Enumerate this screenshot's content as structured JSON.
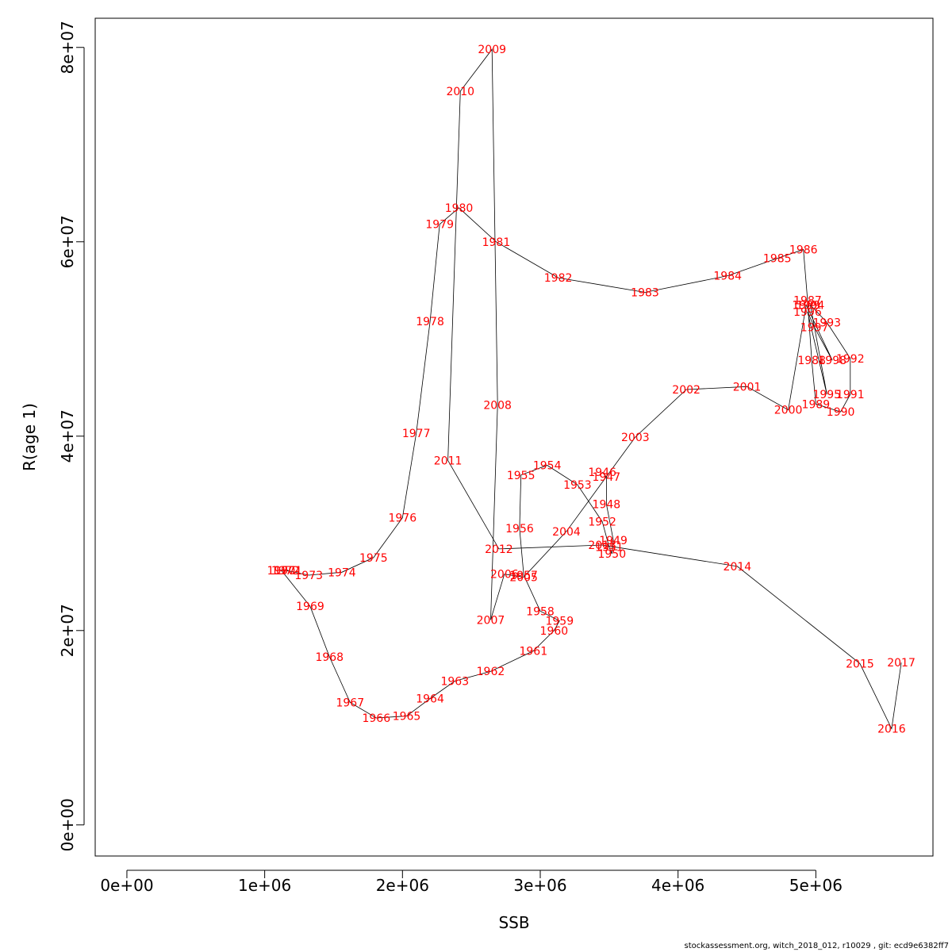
{
  "footer_text": "stockassessment.org, witch_2018_012, r10029 , git: ecd9e6382ff7",
  "chart_data": {
    "type": "line",
    "title": "",
    "xlabel": "SSB",
    "ylabel": "R(age 1)",
    "xlim": [
      -230000,
      5850000
    ],
    "ylim": [
      -3200000,
      83000000
    ],
    "x_ticks": [
      0,
      1000000,
      2000000,
      3000000,
      4000000,
      5000000
    ],
    "x_tick_labels": [
      "0e+00",
      "1e+06",
      "2e+06",
      "3e+06",
      "4e+06",
      "5e+06"
    ],
    "y_ticks": [
      0,
      20000000,
      40000000,
      60000000,
      80000000
    ],
    "y_tick_labels": [
      "0e+00",
      "2e+07",
      "4e+07",
      "6e+07",
      "8e+07"
    ],
    "line_color": "#000000",
    "label_color": "#ff0000",
    "grid": false,
    "points": [
      {
        "year": "1946",
        "ssb": 3450000,
        "rec": 36300000
      },
      {
        "year": "1947",
        "ssb": 3480000,
        "rec": 35800000
      },
      {
        "year": "1948",
        "ssb": 3480000,
        "rec": 33000000
      },
      {
        "year": "1949",
        "ssb": 3530000,
        "rec": 29300000
      },
      {
        "year": "1950",
        "ssb": 3520000,
        "rec": 27900000
      },
      {
        "year": "1951",
        "ssb": 3500000,
        "rec": 28600000
      },
      {
        "year": "1952",
        "ssb": 3450000,
        "rec": 31200000
      },
      {
        "year": "1953",
        "ssb": 3270000,
        "rec": 35000000
      },
      {
        "year": "1954",
        "ssb": 3050000,
        "rec": 37000000
      },
      {
        "year": "1955",
        "ssb": 2860000,
        "rec": 36000000
      },
      {
        "year": "1956",
        "ssb": 2850000,
        "rec": 30500000
      },
      {
        "year": "1957",
        "ssb": 2880000,
        "rec": 25700000
      },
      {
        "year": "1958",
        "ssb": 3000000,
        "rec": 22000000
      },
      {
        "year": "1959",
        "ssb": 3140000,
        "rec": 21000000
      },
      {
        "year": "1960",
        "ssb": 3100000,
        "rec": 20000000
      },
      {
        "year": "1961",
        "ssb": 2950000,
        "rec": 17900000
      },
      {
        "year": "1962",
        "ssb": 2640000,
        "rec": 15800000
      },
      {
        "year": "1963",
        "ssb": 2380000,
        "rec": 14800000
      },
      {
        "year": "1964",
        "ssb": 2200000,
        "rec": 13000000
      },
      {
        "year": "1965",
        "ssb": 2030000,
        "rec": 11200000
      },
      {
        "year": "1966",
        "ssb": 1810000,
        "rec": 11000000
      },
      {
        "year": "1967",
        "ssb": 1620000,
        "rec": 12600000
      },
      {
        "year": "1968",
        "ssb": 1470000,
        "rec": 17300000
      },
      {
        "year": "1969",
        "ssb": 1330000,
        "rec": 22500000
      },
      {
        "year": "1970",
        "ssb": 1120000,
        "rec": 26200000
      },
      {
        "year": "1971",
        "ssb": 1170000,
        "rec": 26200000
      },
      {
        "year": "1972",
        "ssb": 1150000,
        "rec": 26200000
      },
      {
        "year": "1973",
        "ssb": 1320000,
        "rec": 25700000
      },
      {
        "year": "1974",
        "ssb": 1560000,
        "rec": 26000000
      },
      {
        "year": "1975",
        "ssb": 1790000,
        "rec": 27500000
      },
      {
        "year": "1976",
        "ssb": 2000000,
        "rec": 31600000
      },
      {
        "year": "1977",
        "ssb": 2100000,
        "rec": 40300000
      },
      {
        "year": "1978",
        "ssb": 2200000,
        "rec": 51800000
      },
      {
        "year": "1979",
        "ssb": 2270000,
        "rec": 61800000
      },
      {
        "year": "1980",
        "ssb": 2410000,
        "rec": 63500000
      },
      {
        "year": "1981",
        "ssb": 2680000,
        "rec": 60000000
      },
      {
        "year": "1982",
        "ssb": 3130000,
        "rec": 56300000
      },
      {
        "year": "1983",
        "ssb": 3760000,
        "rec": 54800000
      },
      {
        "year": "1984",
        "ssb": 4360000,
        "rec": 56500000
      },
      {
        "year": "1985",
        "ssb": 4720000,
        "rec": 58300000
      },
      {
        "year": "1986",
        "ssb": 4910000,
        "rec": 59200000
      },
      {
        "year": "1987",
        "ssb": 4940000,
        "rec": 54000000
      },
      {
        "year": "1988",
        "ssb": 4970000,
        "rec": 47800000
      },
      {
        "year": "1989",
        "ssb": 5000000,
        "rec": 43300000
      },
      {
        "year": "1990",
        "ssb": 5180000,
        "rec": 42500000
      },
      {
        "year": "1991",
        "ssb": 5250000,
        "rec": 44300000
      },
      {
        "year": "1992",
        "ssb": 5250000,
        "rec": 48000000
      },
      {
        "year": "1993",
        "ssb": 5080000,
        "rec": 51700000
      },
      {
        "year": "1994",
        "ssb": 4960000,
        "rec": 53500000
      },
      {
        "year": "1995",
        "ssb": 5080000,
        "rec": 44300000
      },
      {
        "year": "1996",
        "ssb": 4940000,
        "rec": 52800000
      },
      {
        "year": "1997",
        "ssb": 4990000,
        "rec": 51200000
      },
      {
        "year": "1998",
        "ssb": 5120000,
        "rec": 47800000
      },
      {
        "year": "1999",
        "ssb": 4930000,
        "rec": 53500000
      },
      {
        "year": "2000",
        "ssb": 4800000,
        "rec": 42700000
      },
      {
        "year": "2001",
        "ssb": 4500000,
        "rec": 45100000
      },
      {
        "year": "2002",
        "ssb": 4060000,
        "rec": 44800000
      },
      {
        "year": "2003",
        "ssb": 3690000,
        "rec": 39900000
      },
      {
        "year": "2004",
        "ssb": 3190000,
        "rec": 30200000
      },
      {
        "year": "2005",
        "ssb": 2880000,
        "rec": 25500000
      },
      {
        "year": "2006",
        "ssb": 2740000,
        "rec": 25800000
      },
      {
        "year": "2007",
        "ssb": 2640000,
        "rec": 21100000
      },
      {
        "year": "2008",
        "ssb": 2690000,
        "rec": 43200000
      },
      {
        "year": "2009",
        "ssb": 2650000,
        "rec": 79800000
      },
      {
        "year": "2010",
        "ssb": 2420000,
        "rec": 75500000
      },
      {
        "year": "2011",
        "ssb": 2330000,
        "rec": 37500000
      },
      {
        "year": "2012",
        "ssb": 2700000,
        "rec": 28400000
      },
      {
        "year": "2013",
        "ssb": 3450000,
        "rec": 28800000
      },
      {
        "year": "2014",
        "ssb": 4430000,
        "rec": 26600000
      },
      {
        "year": "2015",
        "ssb": 5320000,
        "rec": 16600000
      },
      {
        "year": "2016",
        "ssb": 5550000,
        "rec": 9900000
      },
      {
        "year": "2017",
        "ssb": 5620000,
        "rec": 16700000
      }
    ]
  }
}
